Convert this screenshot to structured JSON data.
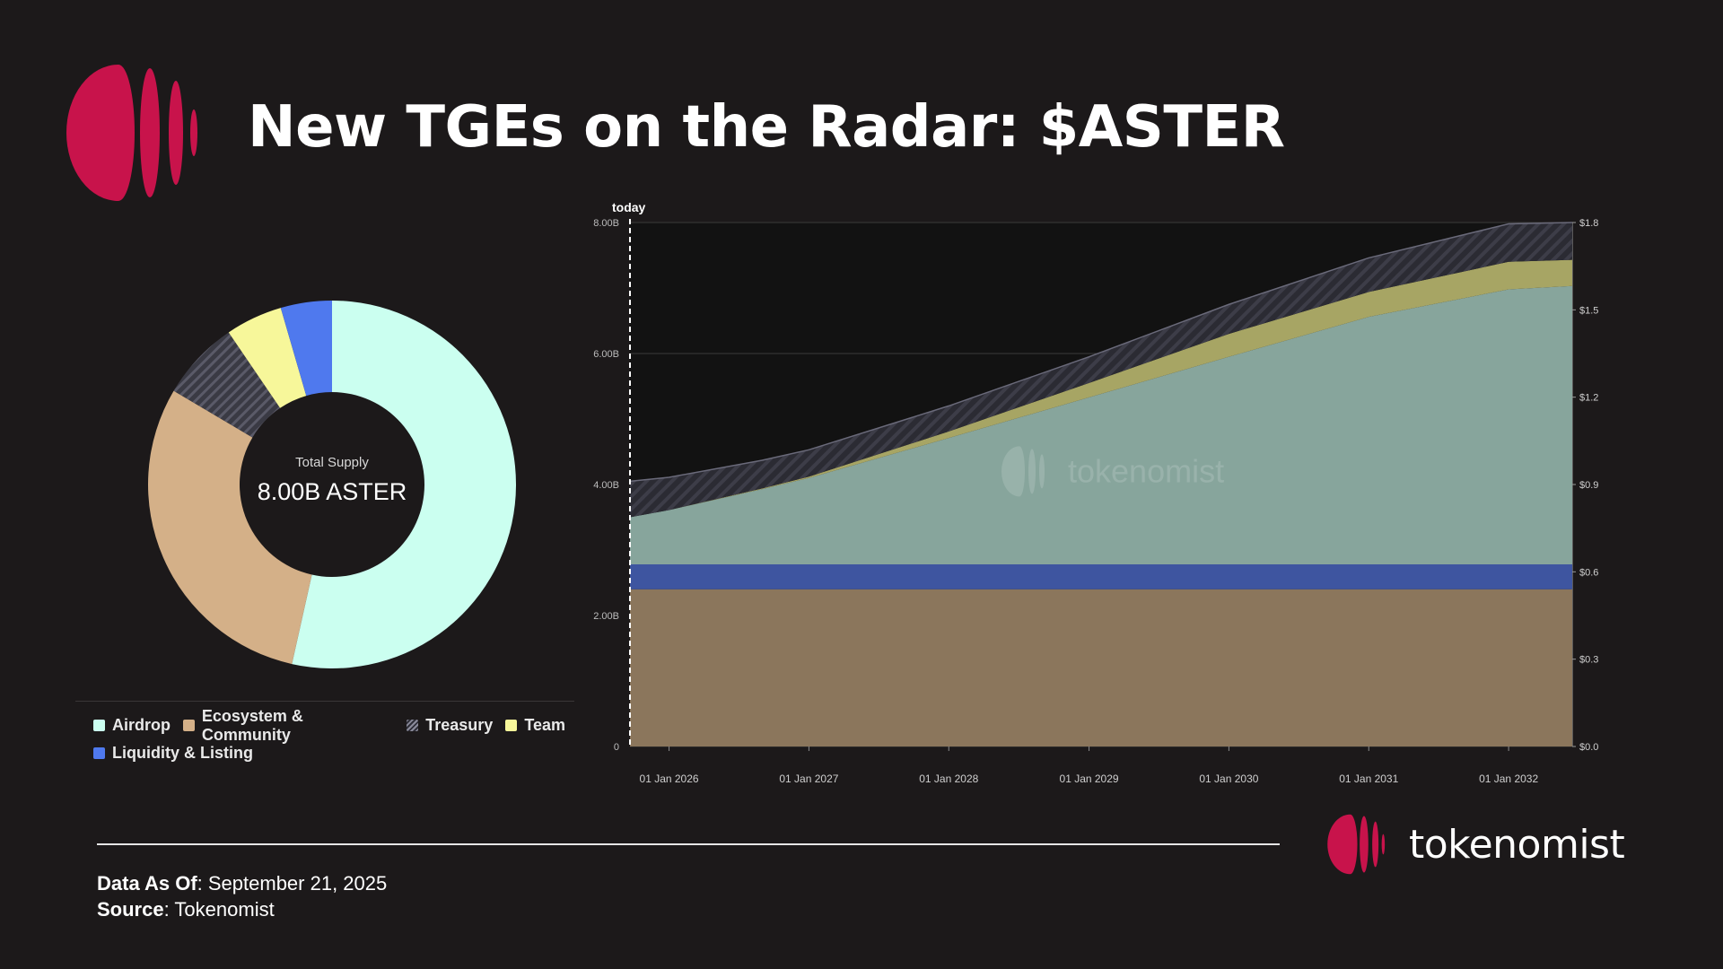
{
  "header": {
    "title": "New TGEs on the Radar: $ASTER"
  },
  "donut": {
    "center_label": "Total Supply",
    "center_value": "8.00B ASTER"
  },
  "colors": {
    "brand": "#c8134b",
    "airdrop": "#cbfff0",
    "ecosystem": "#d4b088",
    "treasury": "#444450",
    "team": "#f7f79a",
    "liquidity": "#4f79ee",
    "area_ecosystem": "#8b765c",
    "area_liquidity": "#3e55a0",
    "area_airdrop": "#87a59c",
    "area_team": "#a7a564"
  },
  "legend": {
    "items": [
      {
        "label": "Airdrop",
        "color": "#cbfff0",
        "pattern": "solid"
      },
      {
        "label": "Ecosystem & Community",
        "color": "#d4b088",
        "pattern": "solid"
      },
      {
        "label": "Treasury",
        "color": "#444450",
        "pattern": "hatch"
      },
      {
        "label": "Team",
        "color": "#f7f79a",
        "pattern": "solid"
      },
      {
        "label": "Liquidity & Listing",
        "color": "#4f79ee",
        "pattern": "solid"
      }
    ]
  },
  "chart_data": [
    {
      "type": "pie",
      "categories": [
        "Airdrop",
        "Ecosystem & Community",
        "Treasury",
        "Team",
        "Liquidity & Listing"
      ],
      "values": [
        53.5,
        30.0,
        7.0,
        5.0,
        4.5
      ],
      "total_label": "Total Supply",
      "total_value": "8.00B ASTER"
    },
    {
      "type": "area",
      "stacked": true,
      "x": [
        "2025-09-21",
        "2026-01-01",
        "2026-09-01",
        "2027-01-01",
        "2028-01-01",
        "2029-01-01",
        "2030-01-01",
        "2031-01-01",
        "2032-01-01",
        "2032-06-15"
      ],
      "series": [
        {
          "key": "ecosystem",
          "values": [
            2.4,
            2.4,
            2.4,
            2.4,
            2.4,
            2.4,
            2.4,
            2.4,
            2.4,
            2.4
          ]
        },
        {
          "key": "liquidity",
          "values": [
            0.38,
            0.38,
            0.38,
            0.38,
            0.38,
            0.38,
            0.38,
            0.38,
            0.38,
            0.38
          ]
        },
        {
          "key": "airdrop",
          "values": [
            0.72,
            0.83,
            1.15,
            1.32,
            1.93,
            2.55,
            3.17,
            3.78,
            4.2,
            4.25
          ]
        },
        {
          "key": "team",
          "values": [
            0.0,
            0.0,
            0.01,
            0.02,
            0.1,
            0.22,
            0.35,
            0.38,
            0.42,
            0.4
          ]
        },
        {
          "key": "treasury",
          "values": [
            0.55,
            0.5,
            0.43,
            0.41,
            0.39,
            0.4,
            0.45,
            0.52,
            0.58,
            0.57
          ]
        }
      ],
      "x_tick_labels": [
        "01 Jan 2026",
        "01 Jan 2027",
        "01 Jan 2028",
        "01 Jan 2029",
        "01 Jan 2030",
        "01 Jan 2031",
        "01 Jan 2032"
      ],
      "y_tick_labels": [
        "0",
        "2.00B",
        "4.00B",
        "6.00B",
        "8.00B"
      ],
      "ylim": [
        0,
        8
      ],
      "y2_tick_labels": [
        "$0.0",
        "$0.3",
        "$0.6",
        "$0.9",
        "$1.2",
        "$1.5",
        "$1.8"
      ],
      "y2lim": [
        0,
        1.8
      ],
      "xlim": [
        "2025-09-21",
        "2032-06-15"
      ],
      "today_label": "today",
      "today_x": "2025-09-21",
      "watermark": "tokenomist",
      "grid": true
    }
  ],
  "footer": {
    "data_as_of_label": "Data As Of",
    "data_as_of_value": ": September 21, 2025",
    "source_label": "Source",
    "source_value": ": Tokenomist"
  },
  "brand": {
    "name": "tokenomist"
  }
}
